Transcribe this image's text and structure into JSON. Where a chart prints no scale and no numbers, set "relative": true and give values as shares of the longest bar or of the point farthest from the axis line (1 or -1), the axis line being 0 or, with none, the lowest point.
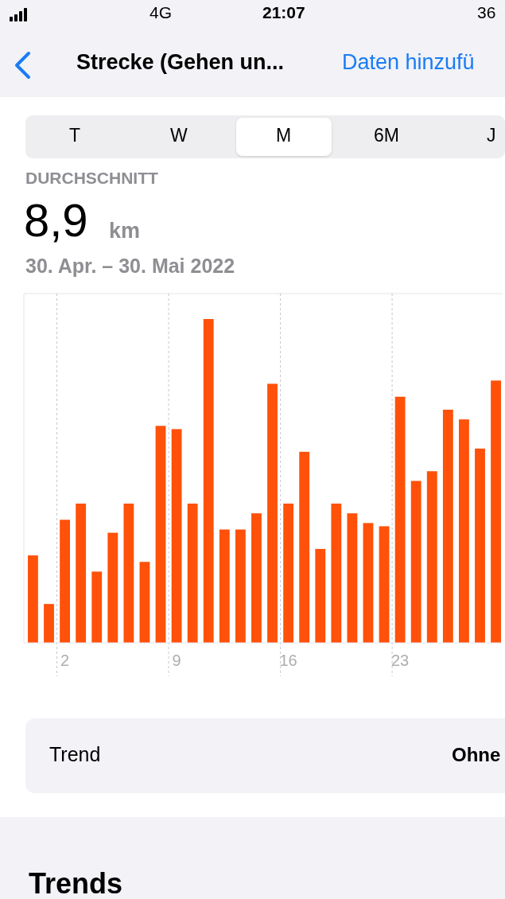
{
  "chart_data": {
    "type": "bar",
    "title": "Strecke (Gehen un...",
    "subtitle": "30. Apr. – 30. Mai 2022",
    "relative": true,
    "color": "#ff5109",
    "grid": "x",
    "categories": [
      null,
      null,
      "2",
      null,
      null,
      null,
      null,
      null,
      null,
      "9",
      null,
      null,
      null,
      null,
      null,
      null,
      "16",
      null,
      null,
      null,
      null,
      null,
      null,
      "23",
      null,
      null,
      null,
      null,
      null,
      null
    ],
    "values": [
      0.27,
      0.12,
      0.38,
      0.43,
      0.22,
      0.34,
      0.43,
      0.25,
      0.67,
      0.66,
      0.43,
      1,
      0.35,
      0.35,
      0.4,
      0.8,
      0.43,
      0.59,
      0.29,
      0.43,
      0.4,
      0.37,
      0.36,
      0.76,
      0.5,
      0.53,
      0.72,
      0.69,
      0.6,
      0.81
    ],
    "annotations": [
      "21:07",
      "4G",
      "36",
      "Daten hinzufü",
      "T",
      "W",
      "M",
      "6M",
      "J",
      "DURCHSCHNITT",
      "8,9",
      "km",
      "Trend",
      "Ohne",
      "Trends"
    ]
  }
}
